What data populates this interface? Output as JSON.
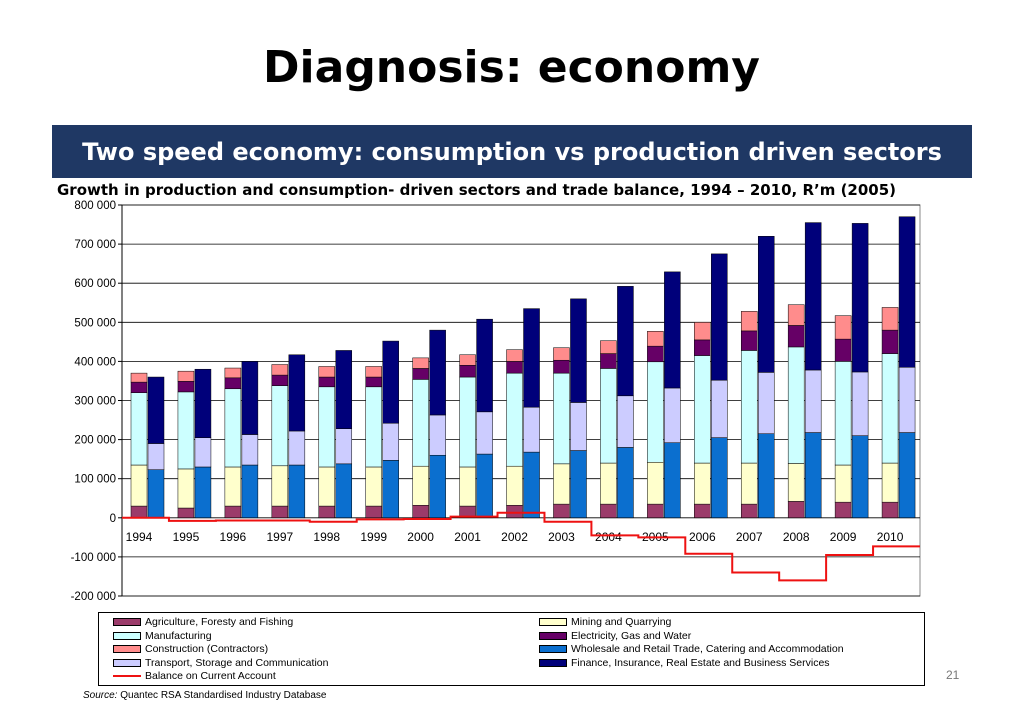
{
  "slide": {
    "title": "Diagnosis: economy",
    "banner": "Two speed economy: consumption vs production driven sectors",
    "page_number": "21",
    "source_label": "Source:",
    "source_text": "Quantec RSA Standardised Industry Database"
  },
  "colors": {
    "agriculture": "#9b3b6a",
    "mining": "#ffffcc",
    "manufacturing": "#ccffff",
    "electricity": "#660066",
    "construction": "#ff8c8c",
    "wholesale": "#0b6fcf",
    "transport": "#ccccff",
    "finance": "#00007a",
    "balance": "#ee1111"
  },
  "chart_data": {
    "type": "bar",
    "title": "Growth in production and consumption- driven sectors and trade balance, 1994 – 2010, R’m (2005)",
    "categories": [
      "1994",
      "1995",
      "1996",
      "1997",
      "1998",
      "1999",
      "2000",
      "2001",
      "2002",
      "2003",
      "2004",
      "2005",
      "2006",
      "2007",
      "2008",
      "2009",
      "2010"
    ],
    "ylim": [
      -200000,
      800000
    ],
    "yticks": [
      -200000,
      -100000,
      0,
      100000,
      200000,
      300000,
      400000,
      500000,
      600000,
      700000,
      800000
    ],
    "ytick_labels": [
      "-200 000",
      "-100 000",
      "0",
      "100 000",
      "200 000",
      "300 000",
      "400 000",
      "500 000",
      "600 000",
      "700 000",
      "800 000"
    ],
    "grid": true,
    "legend_position": "bottom",
    "stacks": [
      {
        "name": "production",
        "series": [
          {
            "name": "Agriculture, Foresty  and Fishing",
            "color_key": "agriculture",
            "values": [
              30000,
              25000,
              30000,
              30000,
              30000,
              30000,
              32000,
              30000,
              32000,
              35000,
              35000,
              35000,
              35000,
              35000,
              42000,
              40000,
              40000
            ]
          },
          {
            "name": "Mining and Quarrying",
            "color_key": "mining",
            "values": [
              105000,
              100000,
              100000,
              103000,
              100000,
              100000,
              100000,
              100000,
              100000,
              103000,
              105000,
              107000,
              105000,
              105000,
              97000,
              95000,
              100000
            ]
          },
          {
            "name": "Manufacturing",
            "color_key": "manufacturing",
            "values": [
              185000,
              197000,
              200000,
              205000,
              205000,
              205000,
              222000,
              230000,
              238000,
              232000,
              242000,
              257000,
              275000,
              288000,
              298000,
              265000,
              280000
            ]
          },
          {
            "name": "Electricity, Gas and Water",
            "color_key": "electricity",
            "values": [
              27000,
              27000,
              28000,
              27000,
              25000,
              25000,
              28000,
              30000,
              30000,
              33000,
              38000,
              40000,
              40000,
              50000,
              55000,
              57000,
              60000
            ]
          },
          {
            "name": "Construction (Contractors)",
            "color_key": "construction",
            "values": [
              23000,
              26000,
              25000,
              27000,
              27000,
              27000,
              27000,
              27000,
              30000,
              32000,
              33000,
              38000,
              45000,
              50000,
              53000,
              60000,
              58000
            ]
          }
        ]
      },
      {
        "name": "consumption",
        "series": [
          {
            "name": "Wholesale and Retail Trade, Catering and Accommodation",
            "color_key": "wholesale",
            "values": [
              123000,
              130000,
              135000,
              135000,
              138000,
              147000,
              160000,
              163000,
              168000,
              172000,
              180000,
              192000,
              205000,
              215000,
              218000,
              210000,
              218000
            ]
          },
          {
            "name": "Transport, Storage and Communication",
            "color_key": "transport",
            "values": [
              67000,
              75000,
              78000,
              87000,
              90000,
              95000,
              103000,
              108000,
              115000,
              123000,
              132000,
              140000,
              147000,
              157000,
              160000,
              163000,
              167000
            ]
          },
          {
            "name": "Finance, Insurance, Real Estate and Business Services",
            "color_key": "finance",
            "values": [
              170000,
              175000,
              187000,
              195000,
              200000,
              210000,
              217000,
              237000,
              252000,
              265000,
              280000,
              297000,
              323000,
              348000,
              377000,
              380000,
              385000
            ]
          }
        ]
      }
    ],
    "line_series": {
      "name": "Balance on Current Account",
      "color_key": "balance",
      "values": [
        0,
        -8000,
        -7000,
        -7000,
        -10000,
        -4000,
        -3000,
        3000,
        13000,
        -10000,
        -45000,
        -50000,
        -92000,
        -140000,
        -160000,
        -95000,
        -73000
      ]
    }
  }
}
